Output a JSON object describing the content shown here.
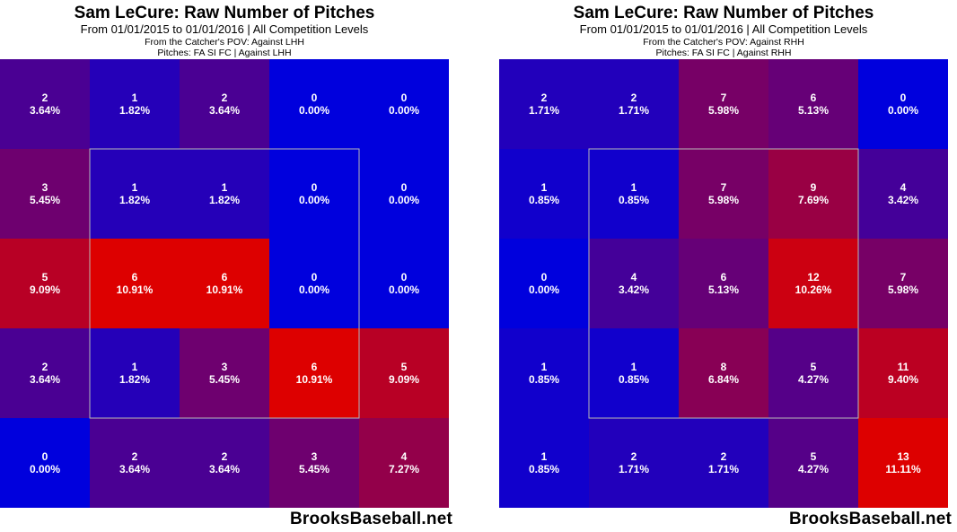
{
  "chart_data": [
    {
      "type": "heatmap",
      "title": "Sam LeCure: Raw Number of Pitches",
      "subtitle": "From 01/01/2015 to 01/01/2016 | All Competition Levels",
      "pov_line": "From the Catcher's POV:  Against LHH",
      "pitches_line": "Pitches:  FA  SI  FC  |  Against LHH",
      "watermark": "BrooksBaseball.net",
      "grid": [
        [
          {
            "count": "2",
            "pct": "3.64%"
          },
          {
            "count": "1",
            "pct": "1.82%"
          },
          {
            "count": "2",
            "pct": "3.64%"
          },
          {
            "count": "0",
            "pct": "0.00%"
          },
          {
            "count": "0",
            "pct": "0.00%"
          }
        ],
        [
          {
            "count": "3",
            "pct": "5.45%"
          },
          {
            "count": "1",
            "pct": "1.82%"
          },
          {
            "count": "1",
            "pct": "1.82%"
          },
          {
            "count": "0",
            "pct": "0.00%"
          },
          {
            "count": "0",
            "pct": "0.00%"
          }
        ],
        [
          {
            "count": "5",
            "pct": "9.09%"
          },
          {
            "count": "6",
            "pct": "10.91%"
          },
          {
            "count": "6",
            "pct": "10.91%"
          },
          {
            "count": "0",
            "pct": "0.00%"
          },
          {
            "count": "0",
            "pct": "0.00%"
          }
        ],
        [
          {
            "count": "2",
            "pct": "3.64%"
          },
          {
            "count": "1",
            "pct": "1.82%"
          },
          {
            "count": "3",
            "pct": "5.45%"
          },
          {
            "count": "6",
            "pct": "10.91%"
          },
          {
            "count": "5",
            "pct": "9.09%"
          }
        ],
        [
          {
            "count": "0",
            "pct": "0.00%"
          },
          {
            "count": "2",
            "pct": "3.64%"
          },
          {
            "count": "2",
            "pct": "3.64%"
          },
          {
            "count": "3",
            "pct": "5.45%"
          },
          {
            "count": "4",
            "pct": "7.27%"
          }
        ]
      ],
      "color_scale": {
        "low": "#0000dd",
        "high": "#dd0000"
      }
    },
    {
      "type": "heatmap",
      "title": "Sam LeCure: Raw Number of Pitches",
      "subtitle": "From 01/01/2015 to 01/01/2016 | All Competition Levels",
      "pov_line": "From the Catcher's POV:  Against RHH",
      "pitches_line": "Pitches:  FA  SI  FC  |  Against RHH",
      "watermark": "BrooksBaseball.net",
      "grid": [
        [
          {
            "count": "2",
            "pct": "1.71%"
          },
          {
            "count": "2",
            "pct": "1.71%"
          },
          {
            "count": "7",
            "pct": "5.98%"
          },
          {
            "count": "6",
            "pct": "5.13%"
          },
          {
            "count": "0",
            "pct": "0.00%"
          }
        ],
        [
          {
            "count": "1",
            "pct": "0.85%"
          },
          {
            "count": "1",
            "pct": "0.85%"
          },
          {
            "count": "7",
            "pct": "5.98%"
          },
          {
            "count": "9",
            "pct": "7.69%"
          },
          {
            "count": "4",
            "pct": "3.42%"
          }
        ],
        [
          {
            "count": "0",
            "pct": "0.00%"
          },
          {
            "count": "4",
            "pct": "3.42%"
          },
          {
            "count": "6",
            "pct": "5.13%"
          },
          {
            "count": "12",
            "pct": "10.26%"
          },
          {
            "count": "7",
            "pct": "5.98%"
          }
        ],
        [
          {
            "count": "1",
            "pct": "0.85%"
          },
          {
            "count": "1",
            "pct": "0.85%"
          },
          {
            "count": "8",
            "pct": "6.84%"
          },
          {
            "count": "5",
            "pct": "4.27%"
          },
          {
            "count": "11",
            "pct": "9.40%"
          }
        ],
        [
          {
            "count": "1",
            "pct": "0.85%"
          },
          {
            "count": "2",
            "pct": "1.71%"
          },
          {
            "count": "2",
            "pct": "1.71%"
          },
          {
            "count": "5",
            "pct": "4.27%"
          },
          {
            "count": "13",
            "pct": "11.11%"
          }
        ]
      ],
      "color_scale": {
        "low": "#0000dd",
        "high": "#dd0000"
      }
    }
  ]
}
